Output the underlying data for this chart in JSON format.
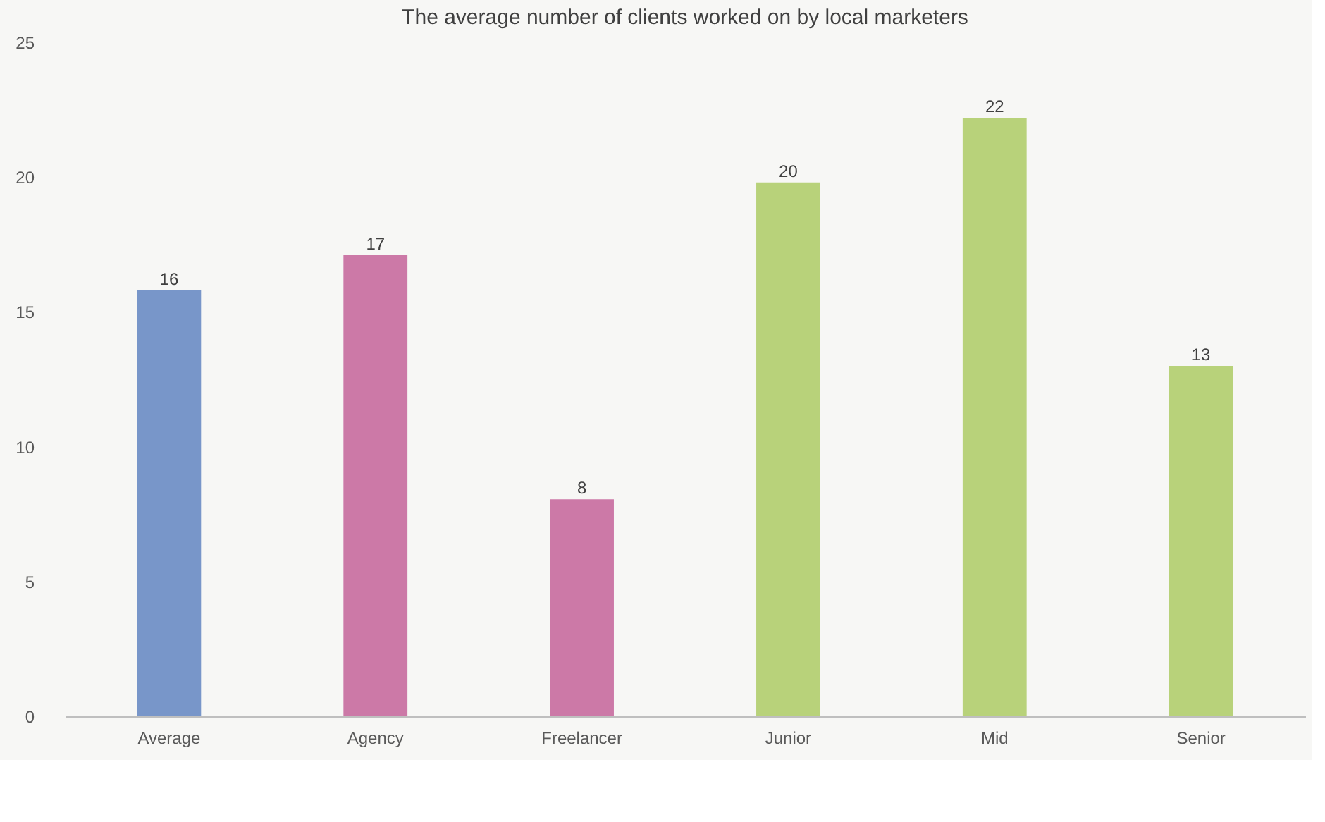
{
  "chart_data": {
    "type": "bar",
    "title": "The average number of clients worked on by local marketers",
    "categories": [
      "Average",
      "Agency",
      "Freelancer",
      "Junior",
      "Mid",
      "Senior"
    ],
    "values": [
      15.8,
      17.1,
      8.05,
      19.8,
      22.2,
      13.0
    ],
    "value_labels": [
      "16",
      "17",
      "8",
      "20",
      "22",
      "13"
    ],
    "colors": [
      "#7896c9",
      "#cc79a7",
      "#cc79a7",
      "#b8d27a",
      "#b8d27a",
      "#b8d27a"
    ],
    "ylim": [
      0,
      25
    ],
    "yticks": [
      0,
      5,
      10,
      15,
      20,
      25
    ],
    "grid": false
  }
}
